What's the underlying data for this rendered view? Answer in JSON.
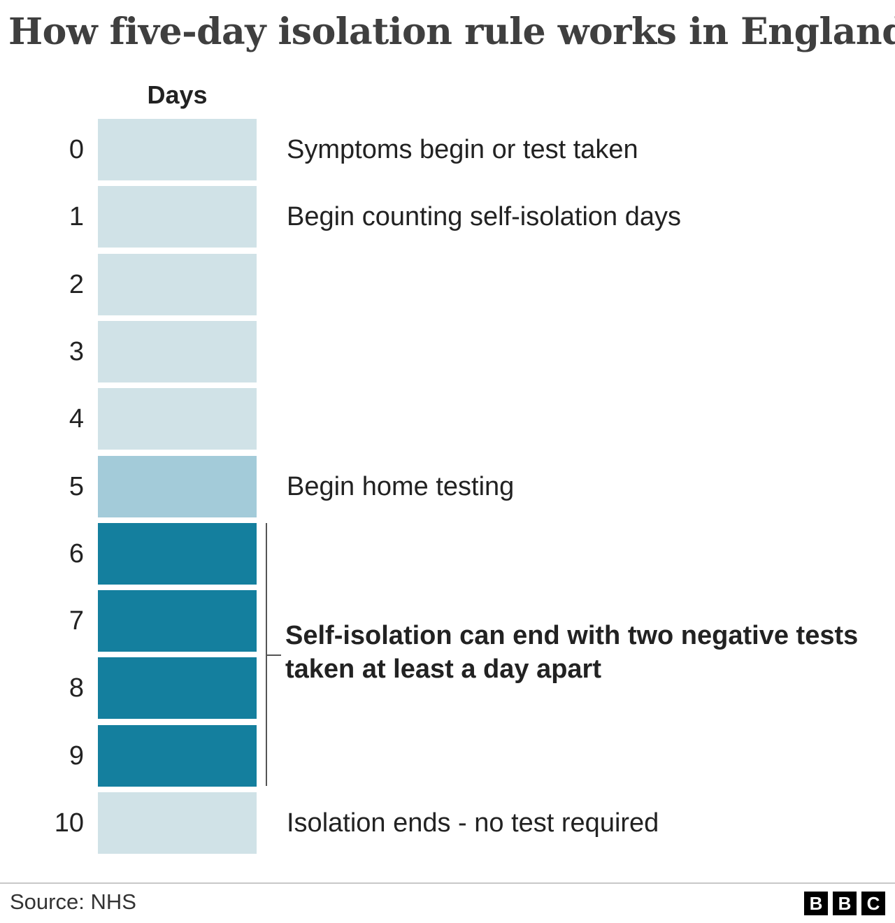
{
  "title": "How five-day isolation rule works in England",
  "column_header": "Days",
  "colors": {
    "light": "#d0e2e7",
    "medium": "#a3cbd9",
    "dark": "#147f9e"
  },
  "days": [
    {
      "day": "0",
      "shade": "light",
      "label": "Symptoms begin or test taken"
    },
    {
      "day": "1",
      "shade": "light",
      "label": "Begin counting self-isolation days"
    },
    {
      "day": "2",
      "shade": "light",
      "label": ""
    },
    {
      "day": "3",
      "shade": "light",
      "label": ""
    },
    {
      "day": "4",
      "shade": "light",
      "label": ""
    },
    {
      "day": "5",
      "shade": "medium",
      "label": "Begin home testing"
    },
    {
      "day": "6",
      "shade": "dark",
      "label": ""
    },
    {
      "day": "7",
      "shade": "dark",
      "label": ""
    },
    {
      "day": "8",
      "shade": "dark",
      "label": ""
    },
    {
      "day": "9",
      "shade": "dark",
      "label": ""
    },
    {
      "day": "10",
      "shade": "light",
      "label": "Isolation ends - no test required"
    }
  ],
  "bracket_label": "Self-isolation can end with two negative tests taken at least a day apart",
  "source": "Source: NHS",
  "logo": [
    "B",
    "B",
    "C"
  ]
}
